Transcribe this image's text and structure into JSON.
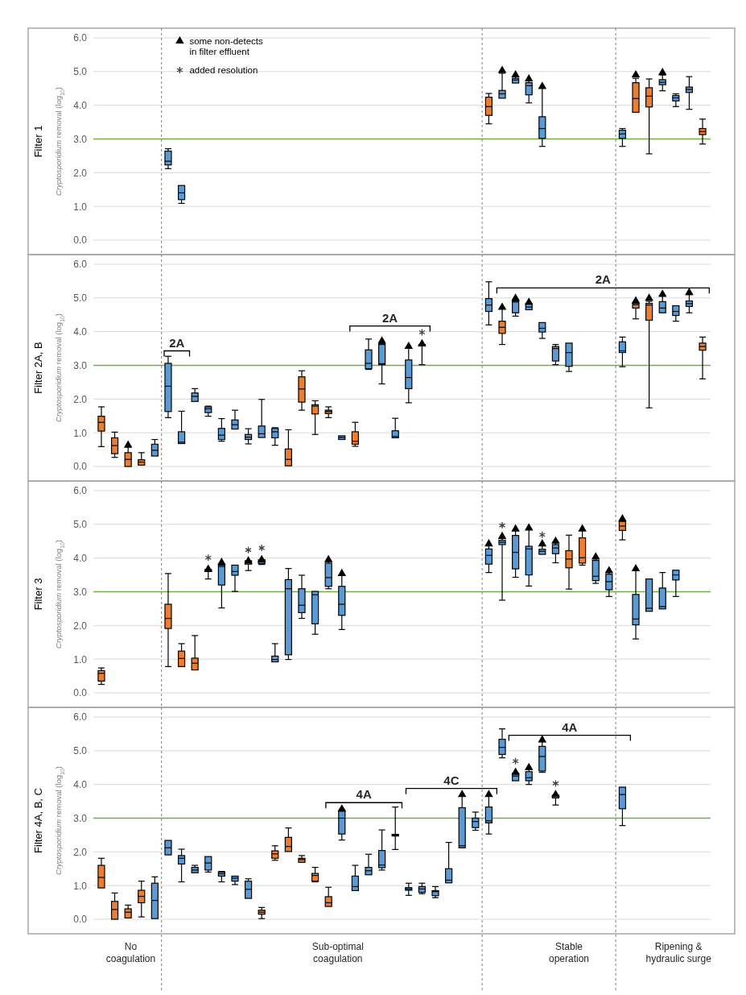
{
  "chart_data": [
    {
      "type": "box",
      "title": "Filter 1",
      "ylabel": "Cryptosporidium removal (log$_{10}$)",
      "categories": [
        null,
        null,
        null,
        null,
        null,
        null,
        null,
        null,
        null,
        null,
        null,
        null,
        null,
        null,
        null,
        null,
        null,
        null,
        null,
        null,
        null,
        null,
        null,
        null,
        null,
        null,
        null,
        null,
        null,
        null,
        null,
        null,
        null,
        null,
        null,
        null,
        null,
        null,
        null,
        null,
        null,
        null,
        null,
        null,
        null,
        null
      ],
      "ylim": [
        0,
        6
      ],
      "yticks": [
        {
          "value": 0,
          "label": "0.0"
        },
        {
          "value": 1,
          "label": "1.0"
        },
        {
          "value": 2,
          "label": "2.0"
        },
        {
          "value": 3,
          "label": "3.0"
        },
        {
          "value": 4,
          "label": "4.0"
        },
        {
          "value": 5,
          "label": "5.0"
        },
        {
          "value": 6,
          "label": "6.0"
        }
      ],
      "tick_labels": "y",
      "grid": "y",
      "legend": "top left",
      "ref_lines": [
        {
          "axis": "y",
          "value": 3,
          "color": "#70ad47",
          "line_style": "solid"
        }
      ],
      "series": [
        {
          "type": "box",
          "color": "#ed7d31",
          "boxes": [
            null,
            null,
            null,
            null,
            null,
            null,
            null,
            null,
            null,
            null,
            null,
            null,
            null,
            null,
            null,
            null,
            null,
            null,
            null,
            null,
            null,
            null,
            null,
            null,
            null,
            null,
            null,
            null,
            null,
            {
              "low": 3.45,
              "q1": 3.7,
              "median": 3.96,
              "q3": 4.24,
              "high": 4.35
            },
            null,
            null,
            null,
            null,
            null,
            null,
            null,
            null,
            null,
            null,
            {
              "low": 3.79,
              "q1": 3.79,
              "median": 4.2,
              "q3": 4.67,
              "high": 4.8
            },
            {
              "low": 2.56,
              "q1": 3.95,
              "median": 4.27,
              "q3": 4.52,
              "high": 4.78
            },
            null,
            null,
            null,
            {
              "low": 2.85,
              "q1": 3.13,
              "median": 3.22,
              "q3": 3.31,
              "high": 3.59
            }
          ]
        },
        {
          "type": "box",
          "color": "#5b9bd5",
          "boxes": [
            null,
            null,
            null,
            null,
            null,
            {
              "low": 2.12,
              "q1": 2.23,
              "median": 2.34,
              "q3": 2.64,
              "high": 2.71
            },
            {
              "low": 1.09,
              "q1": 1.2,
              "median": 1.4,
              "q3": 1.62,
              "high": 1.62
            },
            null,
            null,
            null,
            null,
            null,
            null,
            null,
            null,
            null,
            null,
            null,
            null,
            null,
            null,
            null,
            null,
            null,
            null,
            null,
            null,
            null,
            null,
            null,
            {
              "low": 4.21,
              "q1": 4.21,
              "median": 4.34,
              "q3": 4.44,
              "high": 4.95
            },
            {
              "low": 4.66,
              "q1": 4.66,
              "median": 4.75,
              "q3": 4.8,
              "high": 4.85
            },
            {
              "low": 4.07,
              "q1": 4.31,
              "median": 4.58,
              "q3": 4.67,
              "high": 4.72
            },
            {
              "low": 2.78,
              "q1": 3.02,
              "median": 3.31,
              "q3": 3.66,
              "high": 4.5
            },
            null,
            null,
            null,
            null,
            null,
            {
              "low": 2.78,
              "q1": 3.02,
              "median": 3.15,
              "q3": 3.26,
              "high": 3.31
            },
            null,
            null,
            {
              "low": 4.43,
              "q1": 4.61,
              "median": 4.68,
              "q3": 4.76,
              "high": 4.9
            },
            {
              "low": 3.96,
              "q1": 4.13,
              "median": 4.22,
              "q3": 4.29,
              "high": 4.34
            },
            {
              "low": 3.88,
              "q1": 4.38,
              "median": 4.47,
              "q3": 4.54,
              "high": 4.85
            },
            null
          ]
        },
        {
          "type": "scatter",
          "name": "some non-detects in filter effluent",
          "marker": "triangle",
          "color": "#000000",
          "values": [
            null,
            null,
            null,
            null,
            null,
            null,
            null,
            null,
            null,
            null,
            null,
            null,
            null,
            null,
            null,
            null,
            null,
            null,
            null,
            null,
            null,
            null,
            null,
            null,
            null,
            null,
            null,
            null,
            null,
            null,
            5.03,
            4.9,
            4.78,
            4.56,
            null,
            null,
            null,
            null,
            null,
            null,
            4.9,
            null,
            4.97,
            null,
            null,
            null
          ]
        },
        {
          "type": "scatter",
          "name": "added resolution",
          "marker": "cross",
          "color": "#404040",
          "values": [
            null,
            null,
            null,
            null,
            null,
            null,
            null,
            null,
            null,
            null,
            null,
            null,
            null,
            null,
            null,
            null,
            null,
            null,
            null,
            null,
            null,
            null,
            null,
            null,
            null,
            null,
            null,
            null,
            null,
            null,
            null,
            null,
            null,
            null,
            null,
            null,
            null,
            null,
            null,
            null,
            null,
            null,
            null,
            null,
            null,
            null
          ]
        }
      ]
    },
    {
      "type": "box",
      "title": "Filter 2A, B",
      "ylabel": "Cryptosporidium removal (log$_{10}$)",
      "categories": [
        null,
        null,
        null,
        null,
        null,
        null,
        null,
        null,
        null,
        null,
        null,
        null,
        null,
        null,
        null,
        null,
        null,
        null,
        null,
        null,
        null,
        null,
        null,
        null,
        null,
        null,
        null,
        null,
        null,
        null,
        null,
        null,
        null,
        null,
        null,
        null,
        null,
        null,
        null,
        null,
        null,
        null,
        null,
        null,
        null,
        null
      ],
      "ylim": [
        0,
        6
      ],
      "yticks": [
        {
          "value": 0,
          "label": "0.0"
        },
        {
          "value": 1,
          "label": "1.0"
        },
        {
          "value": 2,
          "label": "2.0"
        },
        {
          "value": 3,
          "label": "3.0"
        },
        {
          "value": 4,
          "label": "4.0"
        },
        {
          "value": 5,
          "label": "5.0"
        },
        {
          "value": 6,
          "label": "6.0"
        }
      ],
      "tick_labels": "y",
      "grid": "y",
      "ref_lines": [
        {
          "axis": "y",
          "value": 3,
          "color": "#70ad47",
          "line_style": "solid"
        }
      ],
      "annotations": [
        "2A",
        "2A",
        "2A"
      ],
      "series": [
        {
          "type": "box",
          "color": "#ed7d31",
          "boxes": [
            {
              "low": 0.59,
              "q1": 1.05,
              "median": 1.31,
              "q3": 1.49,
              "high": 1.77
            },
            {
              "low": 0.27,
              "q1": 0.38,
              "median": 0.62,
              "q3": 0.85,
              "high": 1.02
            },
            {
              "low": 0,
              "q1": 0,
              "median": 0.21,
              "q3": 0.41,
              "high": 0.6
            },
            {
              "low": 0.04,
              "q1": 0.04,
              "median": 0.13,
              "q3": 0.2,
              "high": 0.41
            },
            null,
            null,
            null,
            null,
            null,
            null,
            null,
            null,
            null,
            null,
            {
              "low": 0.02,
              "q1": 0.02,
              "median": 0.21,
              "q3": 0.52,
              "high": 1.09
            },
            {
              "low": 1.67,
              "q1": 1.91,
              "median": 2.3,
              "q3": 2.66,
              "high": 2.84
            },
            {
              "low": 0.95,
              "q1": 1.56,
              "median": 1.79,
              "q3": 1.83,
              "high": 1.95
            },
            {
              "low": 1.45,
              "q1": 1.57,
              "median": 1.63,
              "q3": 1.67,
              "high": 1.77
            },
            null,
            {
              "low": 0.6,
              "q1": 0.66,
              "median": 0.75,
              "q3": 1.03,
              "high": 1.31
            },
            null,
            null,
            null,
            null,
            null,
            null,
            null,
            null,
            null,
            null,
            {
              "low": 3.62,
              "q1": 3.95,
              "median": 4.13,
              "q3": 4.31,
              "high": 4.7
            },
            null,
            null,
            null,
            null,
            null,
            null,
            null,
            null,
            null,
            {
              "low": 4.38,
              "q1": 4.7,
              "median": 4.8,
              "q3": 4.84,
              "high": 4.86
            },
            {
              "low": 1.74,
              "q1": 4.34,
              "median": 4.79,
              "q3": 4.84,
              "high": 4.9
            },
            null,
            null,
            null,
            {
              "low": 2.6,
              "q1": 3.45,
              "median": 3.56,
              "q3": 3.66,
              "high": 3.84
            }
          ]
        },
        {
          "type": "box",
          "color": "#5b9bd5",
          "boxes": [
            null,
            null,
            null,
            null,
            {
              "low": 0.31,
              "q1": 0.31,
              "median": 0.48,
              "q3": 0.66,
              "high": 0.8
            },
            {
              "low": 1.45,
              "q1": 1.63,
              "median": 2.38,
              "q3": 3.06,
              "high": 3.27
            },
            {
              "low": 0.68,
              "q1": 0.68,
              "median": 0.72,
              "q3": 1.03,
              "high": 1.64
            },
            {
              "low": 1.93,
              "q1": 1.93,
              "median": 2.08,
              "q3": 2.18,
              "high": 2.31
            },
            {
              "low": 1.49,
              "q1": 1.6,
              "median": 1.71,
              "q3": 1.77,
              "high": 1.79
            },
            {
              "low": 0.75,
              "q1": 0.8,
              "median": 0.93,
              "q3": 1.13,
              "high": 1.42
            },
            {
              "low": 1.11,
              "q1": 1.11,
              "median": 1.24,
              "q3": 1.38,
              "high": 1.67
            },
            {
              "low": 0.67,
              "q1": 0.8,
              "median": 0.87,
              "q3": 0.95,
              "high": 1.12
            },
            {
              "low": 0.86,
              "q1": 0.86,
              "median": 0.97,
              "q3": 1.2,
              "high": 1.99
            },
            {
              "low": 0.63,
              "q1": 0.85,
              "median": 1.03,
              "q3": 1.13,
              "high": 1.15
            },
            null,
            null,
            null,
            null,
            {
              "low": 0.8,
              "q1": 0.8,
              "median": 0.86,
              "q3": 0.91,
              "high": 0.91
            },
            null,
            {
              "low": 2.88,
              "q1": 2.9,
              "median": 3.06,
              "q3": 3.46,
              "high": 3.78
            },
            {
              "low": 2.45,
              "q1": 3.02,
              "median": 3.05,
              "q3": 3.62,
              "high": 3.65
            },
            {
              "low": 0.85,
              "q1": 0.85,
              "median": 0.89,
              "q3": 1.06,
              "high": 1.43
            },
            {
              "low": 1.89,
              "q1": 2.31,
              "median": 2.64,
              "q3": 3.16,
              "high": 3.52
            },
            {
              "low": 3.02,
              "q1": 3.58,
              "median": 3.6,
              "q3": 3.62,
              "high": 3.62
            },
            null,
            null,
            null,
            null,
            {
              "low": 4.2,
              "q1": 4.6,
              "median": 4.79,
              "q3": 4.98,
              "high": 5.48
            },
            null,
            {
              "low": 4.46,
              "q1": 4.56,
              "median": 4.88,
              "q3": 4.91,
              "high": 4.95
            },
            {
              "low": 4.65,
              "q1": 4.65,
              "median": 4.73,
              "q3": 4.83,
              "high": 4.85
            },
            {
              "low": 3.8,
              "q1": 3.99,
              "median": 4.1,
              "q3": 4.27,
              "high": 4.27
            },
            {
              "low": 3.02,
              "q1": 3.13,
              "median": 3.5,
              "q3": 3.56,
              "high": 3.62
            },
            {
              "low": 2.82,
              "q1": 2.97,
              "median": 3.38,
              "q3": 3.66,
              "high": 3.66
            },
            null,
            null,
            null,
            {
              "low": 2.96,
              "q1": 3.38,
              "median": 3.43,
              "q3": 3.7,
              "high": 3.84
            },
            null,
            null,
            {
              "low": 4.56,
              "q1": 4.56,
              "median": 4.7,
              "q3": 4.89,
              "high": 5.05
            },
            {
              "low": 4.31,
              "q1": 4.48,
              "median": 4.6,
              "q3": 4.77,
              "high": 4.77
            },
            {
              "low": 4.56,
              "q1": 4.75,
              "median": 4.83,
              "q3": 4.91,
              "high": 5.1
            },
            null
          ]
        },
        {
          "type": "scatter",
          "marker": "triangle",
          "color": "#000000",
          "values": [
            null,
            null,
            0.63,
            null,
            null,
            null,
            null,
            null,
            null,
            null,
            null,
            null,
            null,
            null,
            null,
            null,
            null,
            null,
            null,
            null,
            null,
            3.72,
            null,
            3.56,
            3.64,
            null,
            null,
            null,
            null,
            null,
            4.72,
            4.99,
            4.87,
            null,
            null,
            null,
            null,
            null,
            null,
            null,
            4.91,
            4.99,
            5.11,
            null,
            5.16,
            null
          ]
        },
        {
          "type": "scatter",
          "marker": "cross",
          "color": "#404040",
          "values": [
            null,
            null,
            null,
            null,
            null,
            null,
            null,
            null,
            null,
            null,
            null,
            null,
            null,
            null,
            null,
            null,
            null,
            null,
            null,
            null,
            null,
            null,
            null,
            null,
            3.98,
            null,
            null,
            null,
            null,
            null,
            null,
            null,
            null,
            null,
            null,
            null,
            null,
            null,
            null,
            null,
            null,
            null,
            null,
            null,
            null,
            null
          ]
        }
      ]
    },
    {
      "type": "box",
      "title": "Filter 3",
      "ylabel": "Cryptosporidium removal (log$_{10}$)",
      "categories": [
        null,
        null,
        null,
        null,
        null,
        null,
        null,
        null,
        null,
        null,
        null,
        null,
        null,
        null,
        null,
        null,
        null,
        null,
        null,
        null,
        null,
        null,
        null,
        null,
        null,
        null,
        null,
        null,
        null,
        null,
        null,
        null,
        null,
        null,
        null,
        null,
        null,
        null,
        null,
        null,
        null,
        null,
        null,
        null,
        null,
        null
      ],
      "ylim": [
        0,
        6
      ],
      "yticks": [
        {
          "value": 0,
          "label": "0.0"
        },
        {
          "value": 1,
          "label": "1.0"
        },
        {
          "value": 2,
          "label": "2.0"
        },
        {
          "value": 3,
          "label": "3.0"
        },
        {
          "value": 4,
          "label": "4.0"
        },
        {
          "value": 5,
          "label": "5.0"
        },
        {
          "value": 6,
          "label": "6.0"
        }
      ],
      "tick_labels": "y",
      "grid": "y",
      "ref_lines": [
        {
          "axis": "y",
          "value": 3,
          "color": "#70ad47",
          "line_style": "solid"
        }
      ],
      "series": [
        {
          "type": "box",
          "color": "#ed7d31",
          "boxes": [
            {
              "low": 0.25,
              "q1": 0.35,
              "median": 0.58,
              "q3": 0.66,
              "high": 0.74
            },
            null,
            null,
            null,
            null,
            {
              "low": 0.78,
              "q1": 1.91,
              "median": 2.21,
              "q3": 2.63,
              "high": 3.54
            },
            {
              "low": 0.78,
              "q1": 0.78,
              "median": 1.02,
              "q3": 1.24,
              "high": 1.46
            },
            {
              "low": 0.68,
              "q1": 0.68,
              "median": 0.88,
              "q3": 1.03,
              "high": 1.7
            },
            null,
            null,
            null,
            null,
            null,
            null,
            null,
            null,
            null,
            null,
            null,
            null,
            null,
            null,
            null,
            null,
            null,
            null,
            null,
            null,
            null,
            null,
            null,
            null,
            null,
            null,
            null,
            {
              "low": 3.08,
              "q1": 3.71,
              "median": 3.97,
              "q3": 4.22,
              "high": 4.68
            },
            {
              "low": 3.79,
              "q1": 3.85,
              "median": 4.01,
              "q3": 4.6,
              "high": 4.82
            },
            null,
            null,
            {
              "low": 4.54,
              "q1": 4.82,
              "median": 4.95,
              "q3": 5.09,
              "high": 5.12
            },
            null,
            null,
            null,
            null,
            null,
            null
          ]
        },
        {
          "type": "box",
          "color": "#5b9bd5",
          "boxes": [
            null,
            null,
            null,
            null,
            null,
            null,
            null,
            null,
            {
              "low": 3.38,
              "q1": 3.6,
              "median": 3.63,
              "q3": 3.66,
              "high": 3.66
            },
            {
              "low": 2.52,
              "q1": 3.2,
              "median": 3.75,
              "q3": 3.79,
              "high": 3.83
            },
            {
              "low": 3.01,
              "q1": 3.49,
              "median": 3.6,
              "q3": 3.79,
              "high": 3.79
            },
            {
              "low": 3.63,
              "q1": 3.82,
              "median": 3.87,
              "q3": 3.92,
              "high": 3.92
            },
            {
              "low": 3.81,
              "q1": 3.83,
              "median": 3.88,
              "q3": 3.95,
              "high": 3.95
            },
            {
              "low": 0.92,
              "q1": 0.92,
              "median": 0.99,
              "q3": 1.09,
              "high": 1.46
            },
            {
              "low": 0.99,
              "q1": 1.13,
              "median": 3.09,
              "q3": 3.36,
              "high": 3.69
            },
            {
              "low": 2.21,
              "q1": 2.38,
              "median": 2.6,
              "q3": 3.09,
              "high": 3.49
            },
            {
              "low": 1.74,
              "q1": 2.05,
              "median": 2.91,
              "q3": 3.01,
              "high": 3.01
            },
            {
              "low": 3.09,
              "q1": 3.16,
              "median": 3.42,
              "q3": 3.85,
              "high": 3.9
            },
            {
              "low": 1.88,
              "q1": 2.3,
              "median": 2.63,
              "q3": 3.16,
              "high": 3.5
            },
            null,
            null,
            null,
            null,
            null,
            null,
            null,
            null,
            null,
            null,
            {
              "low": 3.57,
              "q1": 3.82,
              "median": 4.08,
              "q3": 4.27,
              "high": 4.38
            },
            {
              "low": 2.75,
              "q1": 4.4,
              "median": 4.47,
              "q3": 4.53,
              "high": 4.6
            },
            {
              "low": 3.43,
              "q1": 3.68,
              "median": 4.17,
              "q3": 4.67,
              "high": 4.82
            },
            {
              "low": 3.17,
              "q1": 3.5,
              "median": 4.27,
              "q3": 4.35,
              "high": 4.85
            },
            {
              "low": 4.11,
              "q1": 4.11,
              "median": 4.2,
              "q3": 4.26,
              "high": 4.38
            },
            {
              "low": 3.86,
              "q1": 4.13,
              "median": 4.3,
              "q3": 4.4,
              "high": 4.46
            },
            null,
            null,
            {
              "low": 3.25,
              "q1": 3.33,
              "median": 3.46,
              "q3": 3.93,
              "high": 3.99
            },
            {
              "low": 2.86,
              "q1": 3.06,
              "median": 3.3,
              "q3": 3.52,
              "high": 3.58
            },
            null,
            {
              "low": 1.6,
              "q1": 2.02,
              "median": 2.19,
              "q3": 2.92,
              "high": 3.64
            },
            {
              "low": 2.42,
              "q1": 2.42,
              "median": 2.51,
              "q3": 3.38,
              "high": 3.38
            },
            {
              "low": 2.49,
              "q1": 2.49,
              "median": 2.56,
              "q3": 3.11,
              "high": 3.57
            },
            {
              "low": 2.86,
              "q1": 3.35,
              "median": 3.5,
              "q3": 3.64,
              "high": 3.64
            },
            null,
            null
          ]
        },
        {
          "type": "scatter",
          "marker": "triangle",
          "color": "#000000",
          "values": [
            null,
            null,
            null,
            null,
            null,
            null,
            null,
            null,
            3.67,
            3.87,
            null,
            3.91,
            3.95,
            null,
            null,
            null,
            null,
            3.95,
            3.54,
            null,
            null,
            null,
            null,
            null,
            null,
            null,
            null,
            null,
            null,
            4.42,
            4.64,
            4.86,
            4.89,
            4.42,
            4.5,
            null,
            4.86,
            4.03,
            3.62,
            5.16,
            3.68,
            null,
            null,
            null,
            null,
            null
          ]
        },
        {
          "type": "scatter",
          "marker": "cross",
          "color": "#404040",
          "values": [
            null,
            null,
            null,
            null,
            null,
            null,
            null,
            null,
            4.01,
            null,
            null,
            4.24,
            4.3,
            null,
            null,
            null,
            null,
            null,
            null,
            null,
            null,
            null,
            null,
            null,
            null,
            null,
            null,
            null,
            null,
            null,
            4.97,
            null,
            null,
            4.69,
            null,
            null,
            null,
            null,
            null,
            null,
            null,
            null,
            null,
            null,
            null,
            null
          ]
        }
      ]
    },
    {
      "type": "box",
      "title": "Filter 4A, B, C",
      "ylabel": "Cryptosporidium removal (log$_{10}$)",
      "categories": [
        null,
        null,
        null,
        null,
        null,
        null,
        null,
        null,
        null,
        null,
        null,
        null,
        null,
        null,
        null,
        null,
        null,
        null,
        null,
        null,
        null,
        null,
        null,
        null,
        null,
        null,
        null,
        null,
        null,
        null,
        null,
        null,
        null,
        null,
        null,
        null,
        null,
        null,
        null,
        null,
        null,
        null,
        null,
        null,
        null,
        null
      ],
      "ylim": [
        0,
        6
      ],
      "yticks": [
        {
          "value": 0,
          "label": "0.0"
        },
        {
          "value": 1,
          "label": "1.0"
        },
        {
          "value": 2,
          "label": "2.0"
        },
        {
          "value": 3,
          "label": "3.0"
        },
        {
          "value": 4,
          "label": "4.0"
        },
        {
          "value": 5,
          "label": "5.0"
        },
        {
          "value": 6,
          "label": "6.0"
        }
      ],
      "tick_labels": "y",
      "grid": "y",
      "ref_lines": [
        {
          "axis": "y",
          "value": 3,
          "color": "#70ad47",
          "line_style": "solid"
        }
      ],
      "annotations": [
        "4A",
        "4C",
        "4A",
        "No coagulation",
        "Sub-optimal coagulation",
        "Stable operation",
        "Ripening & hydraulic surge"
      ],
      "series": [
        {
          "type": "box",
          "color": "#ed7d31",
          "boxes": [
            {
              "low": 0.93,
              "q1": 0.93,
              "median": 1.24,
              "q3": 1.6,
              "high": 1.81
            },
            {
              "low": 0,
              "q1": 0,
              "median": 0.29,
              "q3": 0.53,
              "high": 0.78
            },
            {
              "low": 0.04,
              "q1": 0.04,
              "median": 0.21,
              "q3": 0.31,
              "high": 0.42
            },
            {
              "low": 0.07,
              "q1": 0.49,
              "median": 0.68,
              "q3": 0.86,
              "high": 1.13
            },
            null,
            null,
            null,
            null,
            null,
            null,
            null,
            null,
            {
              "low": 0.02,
              "q1": 0.15,
              "median": 0.21,
              "q3": 0.27,
              "high": 0.35
            },
            {
              "low": 1.75,
              "q1": 1.81,
              "median": 1.94,
              "q3": 2.03,
              "high": 2.18
            },
            {
              "low": 2.01,
              "q1": 2.01,
              "median": 2.16,
              "q3": 2.43,
              "high": 2.71
            },
            {
              "low": 1.69,
              "q1": 1.69,
              "median": 1.77,
              "q3": 1.81,
              "high": 1.89
            },
            {
              "low": 1.11,
              "q1": 1.13,
              "median": 1.3,
              "q3": 1.36,
              "high": 1.54
            },
            {
              "low": 0.38,
              "q1": 0.38,
              "median": 0.49,
              "q3": 0.67,
              "high": 0.95
            },
            null,
            null,
            null,
            null,
            null,
            null,
            null,
            null,
            null,
            null,
            null,
            null,
            null,
            null,
            null,
            null,
            null,
            null,
            null,
            null,
            null,
            null,
            null,
            null,
            null,
            null,
            null,
            null
          ]
        },
        {
          "type": "box",
          "color": "#5b9bd5",
          "boxes": [
            null,
            null,
            null,
            null,
            {
              "low": 0.02,
              "q1": 0.02,
              "median": 0.56,
              "q3": 1.07,
              "high": 1.26
            },
            {
              "low": 1.91,
              "q1": 1.91,
              "median": 2.12,
              "q3": 2.34,
              "high": 2.34
            },
            {
              "low": 1.11,
              "q1": 1.64,
              "median": 1.81,
              "q3": 1.89,
              "high": 2.08
            },
            {
              "low": 1.38,
              "q1": 1.38,
              "median": 1.46,
              "q3": 1.54,
              "high": 1.6
            },
            {
              "low": 1.4,
              "q1": 1.46,
              "median": 1.67,
              "q3": 1.86,
              "high": 1.86
            },
            {
              "low": 1.11,
              "q1": 1.28,
              "median": 1.35,
              "q3": 1.4,
              "high": 1.42
            },
            {
              "low": 1.03,
              "q1": 1.13,
              "median": 1.22,
              "q3": 1.28,
              "high": 1.28
            },
            {
              "low": 0.62,
              "q1": 0.62,
              "median": 0.89,
              "q3": 1.13,
              "high": 1.2
            },
            null,
            null,
            null,
            null,
            null,
            null,
            {
              "low": 2.35,
              "q1": 2.53,
              "median": 3.0,
              "q3": 3.21,
              "high": 3.25
            },
            {
              "low": 0.85,
              "q1": 0.85,
              "median": 0.97,
              "q3": 1.28,
              "high": 1.6
            },
            {
              "low": 1.32,
              "q1": 1.32,
              "median": 1.44,
              "q3": 1.54,
              "high": 1.93
            },
            {
              "low": 1.46,
              "q1": 1.53,
              "median": 1.61,
              "q3": 2.04,
              "high": 2.65
            },
            {
              "low": 2.07,
              "q1": 2.47,
              "median": 2.5,
              "q3": 2.52,
              "high": 3.33
            },
            {
              "low": 0.71,
              "q1": 0.86,
              "median": 0.9,
              "q3": 0.94,
              "high": 1.07
            },
            {
              "low": 0.76,
              "q1": 0.8,
              "median": 0.9,
              "q3": 0.97,
              "high": 1.07
            },
            {
              "low": 0.64,
              "q1": 0.7,
              "median": 0.82,
              "q3": 0.85,
              "high": 0.97
            },
            {
              "low": 1.08,
              "q1": 1.08,
              "median": 1.16,
              "q3": 1.5,
              "high": 2.28
            },
            {
              "low": 2.12,
              "q1": 2.12,
              "median": 2.18,
              "q3": 3.31,
              "high": 3.65
            },
            {
              "low": 2.64,
              "q1": 2.72,
              "median": 2.9,
              "q3": 3.0,
              "high": 3.18
            },
            {
              "low": 2.53,
              "q1": 2.86,
              "median": 2.92,
              "q3": 3.33,
              "high": 3.65
            },
            {
              "low": 4.79,
              "q1": 4.89,
              "median": 5.1,
              "q3": 5.34,
              "high": 5.65
            },
            {
              "low": 4.11,
              "q1": 4.11,
              "median": 4.25,
              "q3": 4.33,
              "high": 4.33
            },
            {
              "low": 4.0,
              "q1": 4.11,
              "median": 4.2,
              "q3": 4.38,
              "high": 4.45
            },
            {
              "low": 4.36,
              "q1": 4.4,
              "median": 4.83,
              "q3": 5.13,
              "high": 5.27
            },
            {
              "low": 3.39,
              "q1": 3.6,
              "median": 3.65,
              "q3": 3.68,
              "high": 3.68
            },
            null,
            null,
            null,
            null,
            {
              "low": 2.78,
              "q1": 3.28,
              "median": 3.7,
              "q3": 3.92,
              "high": 3.92
            },
            null,
            null,
            null,
            null,
            null,
            null
          ]
        },
        {
          "type": "scatter",
          "marker": "triangle",
          "color": "#000000",
          "values": [
            null,
            null,
            null,
            null,
            null,
            null,
            null,
            null,
            null,
            null,
            null,
            null,
            null,
            null,
            null,
            null,
            null,
            null,
            3.27,
            null,
            null,
            null,
            null,
            null,
            null,
            null,
            null,
            3.7,
            null,
            3.7,
            null,
            4.36,
            4.5,
            5.32,
            3.7,
            null,
            null,
            null,
            null,
            null,
            null,
            null,
            null,
            null,
            null,
            null
          ]
        },
        {
          "type": "scatter",
          "marker": "cross",
          "color": "#404040",
          "values": [
            null,
            null,
            null,
            null,
            null,
            null,
            null,
            null,
            null,
            null,
            null,
            null,
            null,
            null,
            null,
            null,
            null,
            null,
            null,
            null,
            null,
            null,
            null,
            null,
            null,
            null,
            null,
            null,
            null,
            null,
            null,
            4.69,
            null,
            null,
            4.03,
            null,
            null,
            null,
            null,
            null,
            null,
            null,
            null,
            null,
            null,
            null
          ]
        }
      ]
    }
  ]
}
